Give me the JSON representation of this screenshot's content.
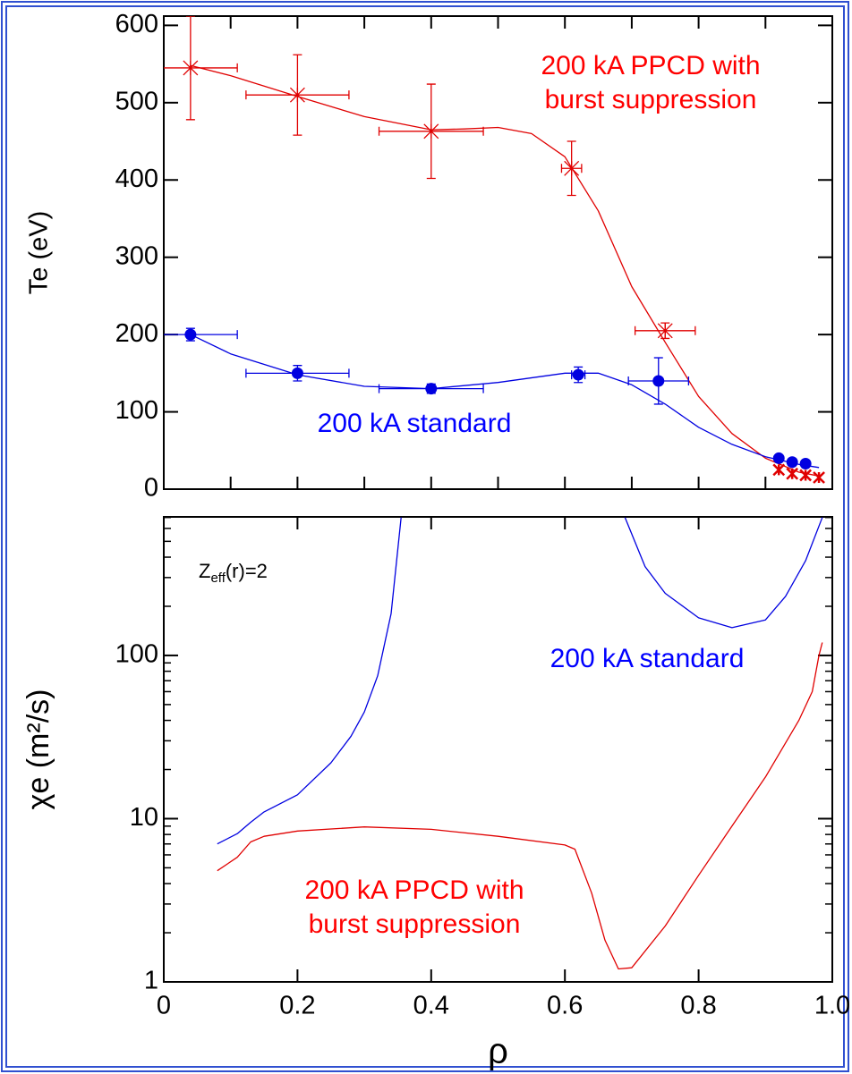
{
  "chart_data": [
    {
      "type": "line",
      "ylabel": "Te (eV)",
      "xlim": [
        0,
        1
      ],
      "xticks": [
        0,
        0.1,
        0.2,
        0.3,
        0.4,
        0.5,
        0.6,
        0.7,
        0.8,
        0.9,
        1
      ],
      "xtick_labels": false,
      "ylim": [
        0,
        612
      ],
      "yticks": [
        0,
        100,
        200,
        300,
        400,
        500,
        600
      ],
      "yscale": "linear",
      "series": [
        {
          "style": "line",
          "color": "#e00000",
          "x": [
            0.04,
            0.1,
            0.2,
            0.3,
            0.4,
            0.45,
            0.5,
            0.55,
            0.6,
            0.65,
            0.7,
            0.75,
            0.8,
            0.85,
            0.9,
            0.95,
            0.98
          ],
          "values": [
            548,
            535,
            508,
            482,
            465,
            466,
            468,
            460,
            430,
            360,
            262,
            190,
            120,
            72,
            40,
            22,
            17
          ]
        },
        {
          "style": "line",
          "color": "#0000e0",
          "x": [
            0.04,
            0.1,
            0.2,
            0.3,
            0.4,
            0.5,
            0.6,
            0.65,
            0.7,
            0.75,
            0.8,
            0.85,
            0.9,
            0.95,
            0.98
          ],
          "values": [
            200,
            175,
            148,
            133,
            130,
            138,
            150,
            150,
            135,
            110,
            80,
            58,
            42,
            32,
            28
          ]
        },
        {
          "style": "points",
          "marker": "star",
          "color": "#e00000",
          "x": [
            0.04,
            0.2,
            0.4,
            0.61,
            0.75
          ],
          "values": [
            545,
            510,
            463,
            415,
            205
          ],
          "xerr": [
            0.07,
            0.077,
            0.078,
            0.015,
            0.045
          ],
          "yerr": [
            67,
            52,
            61,
            35,
            10
          ]
        },
        {
          "style": "points",
          "marker": "star",
          "color": "#e00000",
          "x": [
            0.92,
            0.94,
            0.96,
            0.98
          ],
          "values": [
            25,
            20,
            18,
            15
          ]
        },
        {
          "style": "points",
          "marker": "circle",
          "color": "#0000e0",
          "x": [
            0.04,
            0.2,
            0.4,
            0.62,
            0.74,
            0.92,
            0.94,
            0.96
          ],
          "values": [
            200,
            150,
            130,
            148,
            140,
            40,
            35,
            33
          ],
          "xerr": [
            0.07,
            0.077,
            0.078,
            0.01,
            0.045,
            0,
            0,
            0
          ],
          "yerr": [
            8,
            10,
            6,
            10,
            30,
            3,
            3,
            3
          ]
        }
      ],
      "annotations": [
        {
          "text": "200 kA PPCD with",
          "color": "#ff0000"
        },
        {
          "text": "burst suppression",
          "color": "#ff0000"
        },
        {
          "text": "200 kA standard",
          "color": "#0000ff"
        }
      ]
    },
    {
      "type": "line",
      "ylabel": "χe (m²/s)",
      "xlabel": "ρ",
      "xlim": [
        0,
        1
      ],
      "xticks": [
        0,
        0.2,
        0.4,
        0.6,
        0.8,
        {
          "value": 1,
          "label": "1.0"
        }
      ],
      "xtick_labels": true,
      "ylim": [
        1,
        706
      ],
      "yticks": [
        1,
        10,
        100
      ],
      "yscale": "log",
      "series": [
        {
          "style": "line",
          "color": "#0000e0",
          "x": [
            0.08,
            0.11,
            0.13,
            0.15,
            0.2,
            0.25,
            0.28,
            0.3,
            0.32,
            0.34,
            0.355,
            null,
            0.69,
            0.72,
            0.75,
            0.8,
            0.85,
            0.9,
            0.93,
            0.96,
            0.985
          ],
          "values": [
            7,
            8.1,
            9.5,
            11,
            14,
            22,
            32,
            45,
            75,
            180,
            700,
            null,
            700,
            350,
            240,
            170,
            148,
            165,
            230,
            380,
            700
          ]
        },
        {
          "style": "line",
          "color": "#e00000",
          "x": [
            0.08,
            0.11,
            0.13,
            0.15,
            0.2,
            0.3,
            0.4,
            0.5,
            0.6,
            0.615,
            0.64,
            0.66,
            0.68,
            0.7,
            0.75,
            0.8,
            0.85,
            0.9,
            0.95,
            0.97,
            0.98,
            0.985
          ],
          "values": [
            4.8,
            5.8,
            7.2,
            7.8,
            8.4,
            8.9,
            8.6,
            7.8,
            6.9,
            6.5,
            3.5,
            1.8,
            1.2,
            1.22,
            2.2,
            4.5,
            9,
            18,
            40,
            60,
            100,
            120
          ]
        }
      ],
      "annotations": [
        {
          "text": "200 kA standard",
          "color": "#0000ff"
        },
        {
          "text": "200 kA PPCD with",
          "color": "#ff0000"
        },
        {
          "text": "burst suppression",
          "color": "#ff0000"
        }
      ],
      "note": {
        "base": "Z",
        "sub": "eff",
        "rest": "(r)=2"
      }
    }
  ]
}
